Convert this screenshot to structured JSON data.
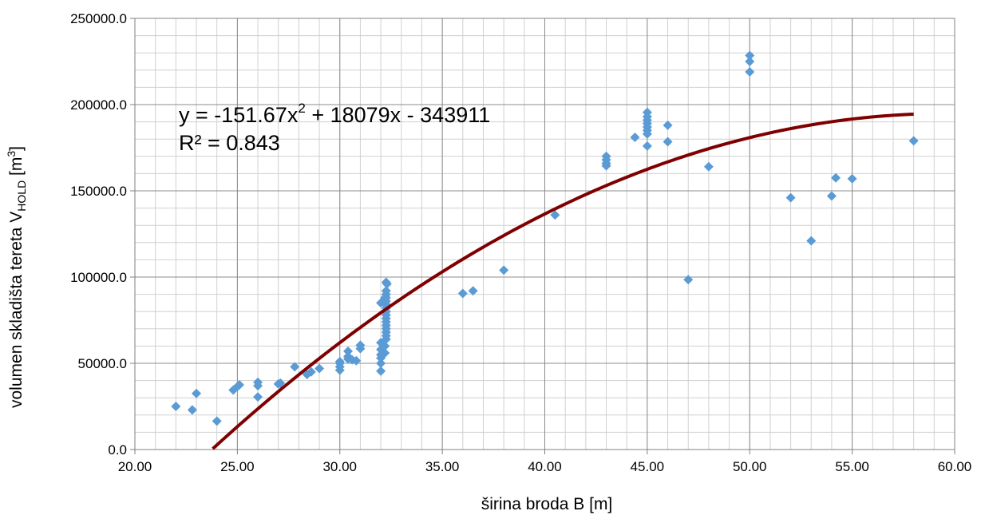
{
  "chart_data": {
    "type": "scatter",
    "title": "",
    "xlabel": "širina broda B [m]",
    "ylabel_parts": {
      "main": "volumen skladišta tereta V",
      "sub": "HOLD",
      "unit": " [m",
      "sup": "3",
      "close": "]"
    },
    "xlim": [
      20,
      60
    ],
    "ylim": [
      0,
      250000
    ],
    "x_ticks": [
      20,
      25,
      30,
      35,
      40,
      45,
      50,
      55,
      60
    ],
    "x_tick_labels": [
      "20.00",
      "25.00",
      "30.00",
      "35.00",
      "40.00",
      "45.00",
      "50.00",
      "55.00",
      "60.00"
    ],
    "y_ticks": [
      0,
      50000,
      100000,
      150000,
      200000,
      250000
    ],
    "y_tick_labels": [
      "0.0",
      "50000.0",
      "100000.0",
      "150000.0",
      "200000.0",
      "250000.0"
    ],
    "grid": true,
    "legend": "none",
    "marker_color": "#5B9BD5",
    "trendline_color": "#7F0000",
    "trendline": {
      "type": "polynomial",
      "coefficients": [
        -151.67,
        18079,
        -343911
      ],
      "x_range": [
        23.8,
        58
      ],
      "equation_parts": {
        "prefix": "y = -151.67x",
        "sup": "2",
        "suffix": " + 18079x - 343911"
      },
      "r2_label": "R² = 0.843"
    },
    "points": [
      [
        22,
        25000
      ],
      [
        22.8,
        23000
      ],
      [
        23,
        32500
      ],
      [
        24,
        16500
      ],
      [
        24.8,
        34500
      ],
      [
        25,
        36500
      ],
      [
        25.1,
        37500
      ],
      [
        26,
        30500
      ],
      [
        26,
        37000
      ],
      [
        26,
        39000
      ],
      [
        27,
        38000
      ],
      [
        27.1,
        38500
      ],
      [
        27.8,
        48000
      ],
      [
        28.4,
        43500
      ],
      [
        28.6,
        45000
      ],
      [
        29,
        47000
      ],
      [
        30,
        46000
      ],
      [
        30,
        48000
      ],
      [
        30,
        50000
      ],
      [
        30,
        51000
      ],
      [
        30.4,
        52500
      ],
      [
        30.4,
        54000
      ],
      [
        30.4,
        57000
      ],
      [
        30.6,
        52000
      ],
      [
        30.8,
        51500
      ],
      [
        31,
        58500
      ],
      [
        31,
        60500
      ],
      [
        32,
        45500
      ],
      [
        32,
        50000
      ],
      [
        32,
        53000
      ],
      [
        32,
        55000
      ],
      [
        32,
        58000
      ],
      [
        32,
        62000
      ],
      [
        32,
        85000
      ],
      [
        32.2,
        88000
      ],
      [
        32.2,
        56000
      ],
      [
        32.2,
        60000
      ],
      [
        32.26,
        64000
      ],
      [
        32.26,
        66000
      ],
      [
        32.26,
        68000
      ],
      [
        32.26,
        70000
      ],
      [
        32.26,
        72000
      ],
      [
        32.26,
        74000
      ],
      [
        32.26,
        76000
      ],
      [
        32.26,
        78000
      ],
      [
        32.26,
        80000
      ],
      [
        32.26,
        82000
      ],
      [
        32.26,
        84000
      ],
      [
        32.26,
        86000
      ],
      [
        32.26,
        88000
      ],
      [
        32.26,
        90000
      ],
      [
        32.26,
        92000
      ],
      [
        32.26,
        97000
      ],
      [
        32.3,
        96000
      ],
      [
        36,
        90500
      ],
      [
        36.5,
        92000
      ],
      [
        38,
        104000
      ],
      [
        40.5,
        136000
      ],
      [
        43,
        164500
      ],
      [
        43,
        166000
      ],
      [
        43,
        168000
      ],
      [
        43,
        170000
      ],
      [
        44.4,
        181000
      ],
      [
        45,
        176000
      ],
      [
        45,
        183000
      ],
      [
        45,
        185000
      ],
      [
        45,
        187000
      ],
      [
        45,
        189000
      ],
      [
        45,
        191000
      ],
      [
        45,
        193000
      ],
      [
        45,
        195500
      ],
      [
        46,
        178500
      ],
      [
        46,
        188000
      ],
      [
        47,
        98500
      ],
      [
        48,
        164000
      ],
      [
        50,
        219000
      ],
      [
        50,
        225000
      ],
      [
        50,
        228500
      ],
      [
        52,
        146000
      ],
      [
        53,
        121000
      ],
      [
        54,
        147000
      ],
      [
        54.2,
        157500
      ],
      [
        55,
        157000
      ],
      [
        58,
        179000
      ]
    ]
  }
}
